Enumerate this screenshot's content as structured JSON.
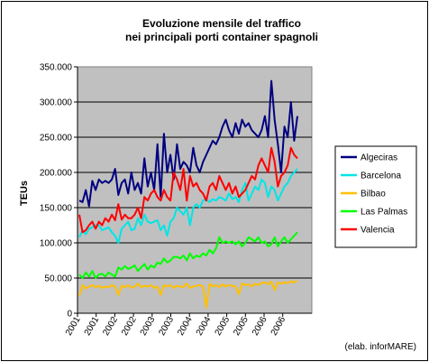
{
  "chart_data": {
    "type": "line",
    "title": "Evoluzione mensile del traffico",
    "subtitle": "nei principali porti container spagnoli",
    "ylabel": "TEUs",
    "xlabel": "",
    "ylim": [
      0,
      350000
    ],
    "yticks": [
      "0",
      "50.000",
      "100.000",
      "150.000",
      "200.000",
      "250.000",
      "300.000",
      "350.000"
    ],
    "xtick_labels": [
      "2001",
      "2001",
      "2002",
      "2002",
      "2003",
      "2003",
      "2004",
      "2004",
      "2005",
      "2005",
      "2006",
      "2006"
    ],
    "grid": true,
    "legend_position": "right",
    "source_note": "(elab. inforMARE)",
    "series": [
      {
        "name": "Algeciras",
        "color": "#000080",
        "values": [
          160000,
          158000,
          175000,
          152000,
          188000,
          175000,
          190000,
          185000,
          188000,
          185000,
          190000,
          205000,
          168000,
          185000,
          190000,
          170000,
          200000,
          175000,
          185000,
          170000,
          220000,
          180000,
          200000,
          175000,
          240000,
          165000,
          255000,
          200000,
          225000,
          190000,
          240000,
          205000,
          215000,
          210000,
          200000,
          235000,
          210000,
          200000,
          215000,
          225000,
          235000,
          245000,
          240000,
          250000,
          265000,
          275000,
          260000,
          250000,
          270000,
          255000,
          275000,
          265000,
          270000,
          260000,
          255000,
          250000,
          260000,
          280000,
          250000,
          330000,
          275000,
          240000,
          200000,
          265000,
          250000,
          300000,
          245000,
          280000
        ]
      },
      {
        "name": "Barcelona",
        "color": "#00E5E5",
        "values": [
          108000,
          118000,
          112000,
          120000,
          122000,
          125000,
          125000,
          118000,
          120000,
          122000,
          115000,
          110000,
          100000,
          120000,
          125000,
          130000,
          118000,
          120000,
          135000,
          125000,
          140000,
          130000,
          128000,
          130000,
          132000,
          118000,
          125000,
          110000,
          130000,
          135000,
          150000,
          145000,
          140000,
          150000,
          125000,
          150000,
          155000,
          150000,
          160000,
          162000,
          158000,
          162000,
          160000,
          165000,
          163000,
          160000,
          170000,
          162000,
          165000,
          158000,
          175000,
          185000,
          160000,
          170000,
          180000,
          175000,
          190000,
          185000,
          165000,
          180000,
          175000,
          160000,
          170000,
          180000,
          185000,
          195000,
          200000,
          205000
        ]
      },
      {
        "name": "Bilbao",
        "color": "#FFC000",
        "values": [
          25000,
          40000,
          35000,
          38000,
          40000,
          37000,
          39000,
          36000,
          38000,
          37000,
          40000,
          38000,
          26000,
          39000,
          37000,
          40000,
          36000,
          38000,
          42000,
          37000,
          39000,
          38000,
          40000,
          36000,
          38000,
          26000,
          40000,
          38000,
          40000,
          36000,
          39000,
          38000,
          37000,
          42000,
          36000,
          38000,
          39000,
          40000,
          38000,
          8000,
          42000,
          38000,
          40000,
          37000,
          41000,
          38000,
          40000,
          39000,
          38000,
          27000,
          42000,
          40000,
          41000,
          38000,
          42000,
          40000,
          43000,
          44000,
          41000,
          45000,
          33000,
          44000,
          42000,
          44000,
          43000,
          45000,
          44000,
          46000
        ]
      },
      {
        "name": "Las Palmas",
        "color": "#00FF00",
        "values": [
          55000,
          50000,
          58000,
          52000,
          60000,
          50000,
          55000,
          56000,
          52000,
          58000,
          55000,
          52000,
          65000,
          62000,
          67000,
          63000,
          65000,
          68000,
          60000,
          65000,
          70000,
          62000,
          68000,
          65000,
          72000,
          70000,
          78000,
          72000,
          75000,
          80000,
          80000,
          78000,
          82000,
          75000,
          85000,
          78000,
          82000,
          80000,
          85000,
          82000,
          90000,
          85000,
          92000,
          108000,
          100000,
          102000,
          100000,
          102000,
          98000,
          102000,
          95000,
          100000,
          108000,
          105000,
          102000,
          108000,
          100000,
          102000,
          95000,
          98000,
          108000,
          95000,
          102000,
          108000,
          100000,
          105000,
          110000,
          115000
        ]
      },
      {
        "name": "Valencia",
        "color": "#FF0000",
        "values": [
          140000,
          115000,
          118000,
          125000,
          130000,
          120000,
          130000,
          125000,
          135000,
          130000,
          140000,
          132000,
          155000,
          133000,
          140000,
          135000,
          135000,
          140000,
          150000,
          135000,
          165000,
          160000,
          170000,
          175000,
          165000,
          160000,
          175000,
          165000,
          160000,
          200000,
          190000,
          175000,
          205000,
          160000,
          195000,
          180000,
          185000,
          175000,
          170000,
          160000,
          180000,
          185000,
          175000,
          195000,
          185000,
          175000,
          185000,
          170000,
          180000,
          165000,
          170000,
          175000,
          185000,
          195000,
          190000,
          210000,
          220000,
          210000,
          200000,
          235000,
          215000,
          180000,
          195000,
          200000,
          210000,
          235000,
          225000,
          220000
        ]
      }
    ]
  }
}
